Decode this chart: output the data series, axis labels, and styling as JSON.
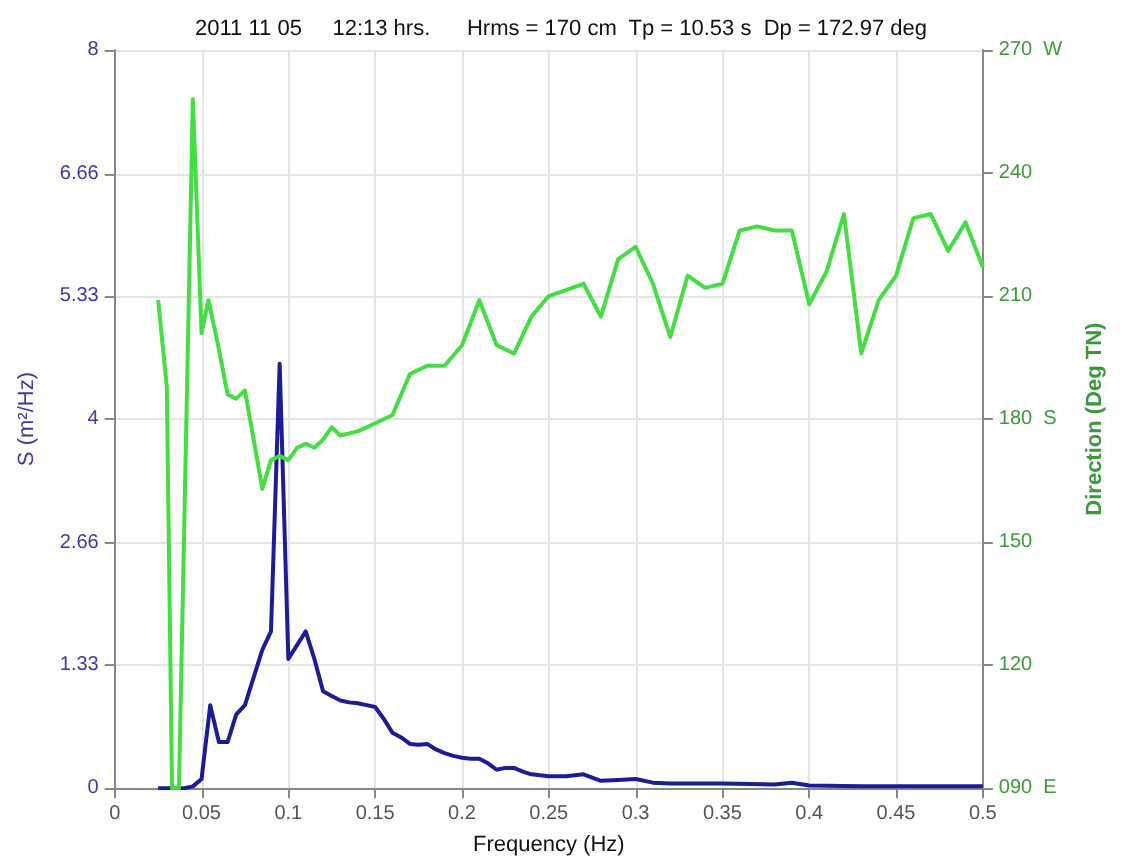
{
  "chart_data": {
    "type": "line",
    "title": "2011 11 05     12:13 hrs.      Hrms = 170 cm  Tp = 10.53 s  Dp = 172.97 deg",
    "xlabel": "Frequency (Hz)",
    "ylabel": "S (m²/Hz)",
    "y2label": "Direction (Deg TN)",
    "xlim": [
      0,
      0.5
    ],
    "xticks": [
      0,
      0.05,
      0.1,
      0.15,
      0.2,
      0.25,
      0.3,
      0.35,
      0.4,
      0.45,
      0.5
    ],
    "ylim": [
      0,
      8
    ],
    "yticks": [
      0,
      1.33,
      2.66,
      4,
      5.33,
      6.66,
      8
    ],
    "y2lim": [
      90,
      270
    ],
    "y2ticks": [
      {
        "value": 90,
        "label": "090  E"
      },
      120,
      150,
      {
        "value": 180,
        "label": "180  S"
      },
      210,
      240,
      {
        "value": 270,
        "label": "270  W"
      }
    ],
    "grid": true,
    "marker": "none",
    "line_style": "solid",
    "series": [
      {
        "color": "#1c1c96",
        "x": [
          0.025,
          0.03,
          0.035,
          0.04,
          0.045,
          0.05,
          0.055,
          0.06,
          0.065,
          0.07,
          0.075,
          0.08,
          0.085,
          0.09,
          0.095,
          0.1,
          0.105,
          0.11,
          0.115,
          0.12,
          0.125,
          0.13,
          0.135,
          0.14,
          0.145,
          0.15,
          0.155,
          0.16,
          0.165,
          0.17,
          0.175,
          0.18,
          0.185,
          0.19,
          0.195,
          0.2,
          0.205,
          0.21,
          0.215,
          0.22,
          0.225,
          0.23,
          0.235,
          0.24,
          0.25,
          0.26,
          0.27,
          0.28,
          0.29,
          0.3,
          0.31,
          0.32,
          0.35,
          0.38,
          0.39,
          0.4,
          0.43,
          0.5
        ],
        "values": [
          0,
          0,
          0,
          0,
          0.02,
          0.1,
          0.9,
          0.5,
          0.5,
          0.8,
          0.9,
          1.2,
          1.5,
          1.7,
          4.6,
          1.4,
          1.55,
          1.7,
          1.4,
          1.05,
          1.0,
          0.95,
          0.93,
          0.92,
          0.9,
          0.88,
          0.75,
          0.6,
          0.55,
          0.48,
          0.47,
          0.48,
          0.42,
          0.38,
          0.35,
          0.33,
          0.32,
          0.32,
          0.27,
          0.2,
          0.22,
          0.22,
          0.18,
          0.15,
          0.13,
          0.13,
          0.15,
          0.08,
          0.09,
          0.1,
          0.06,
          0.05,
          0.05,
          0.04,
          0.06,
          0.03,
          0.02,
          0.02
        ]
      },
      {
        "color": "#44dd44",
        "axis": "y2",
        "x": [
          0.025,
          0.03,
          0.033,
          0.037,
          0.045,
          0.05,
          0.054,
          0.06,
          0.065,
          0.07,
          0.075,
          0.08,
          0.085,
          0.09,
          0.095,
          0.1,
          0.105,
          0.11,
          0.115,
          0.12,
          0.125,
          0.13,
          0.14,
          0.15,
          0.16,
          0.17,
          0.18,
          0.19,
          0.2,
          0.21,
          0.22,
          0.23,
          0.24,
          0.25,
          0.27,
          0.28,
          0.29,
          0.3,
          0.31,
          0.32,
          0.33,
          0.34,
          0.35,
          0.36,
          0.37,
          0.38,
          0.39,
          0.4,
          0.41,
          0.42,
          0.43,
          0.44,
          0.45,
          0.46,
          0.47,
          0.48,
          0.49,
          0.5
        ],
        "values": [
          209,
          188,
          90,
          90,
          258,
          201,
          209,
          197,
          186,
          185,
          187,
          175,
          163,
          170,
          171,
          170,
          173,
          174,
          173,
          175,
          178,
          176,
          177,
          179,
          181,
          191,
          193,
          193,
          198,
          209,
          198,
          196,
          205,
          210,
          213,
          205,
          219,
          222,
          213,
          200,
          215,
          212,
          213,
          226,
          227,
          226,
          226,
          208,
          216,
          230,
          196,
          209,
          215,
          229,
          230,
          221,
          228,
          217
        ]
      }
    ]
  }
}
